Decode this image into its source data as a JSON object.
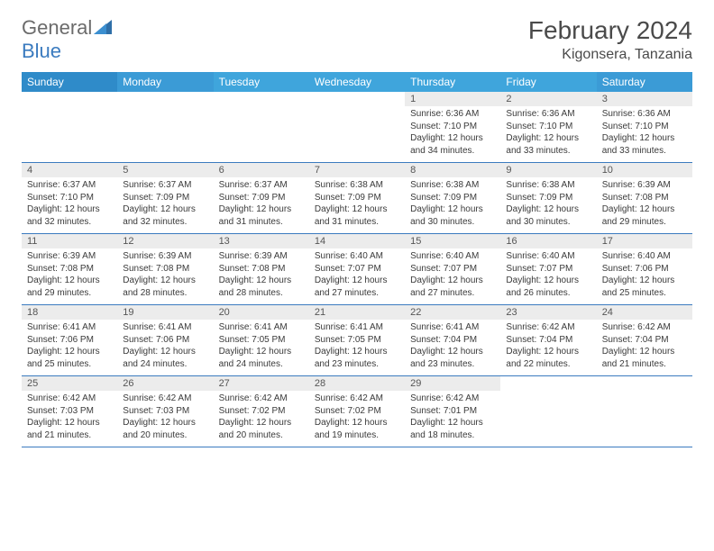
{
  "logo": {
    "text1": "General",
    "text2": "Blue"
  },
  "title": {
    "month": "February 2024",
    "location": "Kigonsera, Tanzania"
  },
  "colors": {
    "header_bg": "#3fa5dc",
    "header_bg_alt": "#2f8bc9",
    "row_divider": "#3b7bbf",
    "daynum_bg": "#ececec",
    "text": "#3a3a3a",
    "title_text": "#4a4a4a"
  },
  "day_names": [
    "Sunday",
    "Monday",
    "Tuesday",
    "Wednesday",
    "Thursday",
    "Friday",
    "Saturday"
  ],
  "weeks": [
    [
      {
        "n": "",
        "sr": "",
        "ss": "",
        "dl": ""
      },
      {
        "n": "",
        "sr": "",
        "ss": "",
        "dl": ""
      },
      {
        "n": "",
        "sr": "",
        "ss": "",
        "dl": ""
      },
      {
        "n": "",
        "sr": "",
        "ss": "",
        "dl": ""
      },
      {
        "n": "1",
        "sr": "Sunrise: 6:36 AM",
        "ss": "Sunset: 7:10 PM",
        "dl": "Daylight: 12 hours and 34 minutes."
      },
      {
        "n": "2",
        "sr": "Sunrise: 6:36 AM",
        "ss": "Sunset: 7:10 PM",
        "dl": "Daylight: 12 hours and 33 minutes."
      },
      {
        "n": "3",
        "sr": "Sunrise: 6:36 AM",
        "ss": "Sunset: 7:10 PM",
        "dl": "Daylight: 12 hours and 33 minutes."
      }
    ],
    [
      {
        "n": "4",
        "sr": "Sunrise: 6:37 AM",
        "ss": "Sunset: 7:10 PM",
        "dl": "Daylight: 12 hours and 32 minutes."
      },
      {
        "n": "5",
        "sr": "Sunrise: 6:37 AM",
        "ss": "Sunset: 7:09 PM",
        "dl": "Daylight: 12 hours and 32 minutes."
      },
      {
        "n": "6",
        "sr": "Sunrise: 6:37 AM",
        "ss": "Sunset: 7:09 PM",
        "dl": "Daylight: 12 hours and 31 minutes."
      },
      {
        "n": "7",
        "sr": "Sunrise: 6:38 AM",
        "ss": "Sunset: 7:09 PM",
        "dl": "Daylight: 12 hours and 31 minutes."
      },
      {
        "n": "8",
        "sr": "Sunrise: 6:38 AM",
        "ss": "Sunset: 7:09 PM",
        "dl": "Daylight: 12 hours and 30 minutes."
      },
      {
        "n": "9",
        "sr": "Sunrise: 6:38 AM",
        "ss": "Sunset: 7:09 PM",
        "dl": "Daylight: 12 hours and 30 minutes."
      },
      {
        "n": "10",
        "sr": "Sunrise: 6:39 AM",
        "ss": "Sunset: 7:08 PM",
        "dl": "Daylight: 12 hours and 29 minutes."
      }
    ],
    [
      {
        "n": "11",
        "sr": "Sunrise: 6:39 AM",
        "ss": "Sunset: 7:08 PM",
        "dl": "Daylight: 12 hours and 29 minutes."
      },
      {
        "n": "12",
        "sr": "Sunrise: 6:39 AM",
        "ss": "Sunset: 7:08 PM",
        "dl": "Daylight: 12 hours and 28 minutes."
      },
      {
        "n": "13",
        "sr": "Sunrise: 6:39 AM",
        "ss": "Sunset: 7:08 PM",
        "dl": "Daylight: 12 hours and 28 minutes."
      },
      {
        "n": "14",
        "sr": "Sunrise: 6:40 AM",
        "ss": "Sunset: 7:07 PM",
        "dl": "Daylight: 12 hours and 27 minutes."
      },
      {
        "n": "15",
        "sr": "Sunrise: 6:40 AM",
        "ss": "Sunset: 7:07 PM",
        "dl": "Daylight: 12 hours and 27 minutes."
      },
      {
        "n": "16",
        "sr": "Sunrise: 6:40 AM",
        "ss": "Sunset: 7:07 PM",
        "dl": "Daylight: 12 hours and 26 minutes."
      },
      {
        "n": "17",
        "sr": "Sunrise: 6:40 AM",
        "ss": "Sunset: 7:06 PM",
        "dl": "Daylight: 12 hours and 25 minutes."
      }
    ],
    [
      {
        "n": "18",
        "sr": "Sunrise: 6:41 AM",
        "ss": "Sunset: 7:06 PM",
        "dl": "Daylight: 12 hours and 25 minutes."
      },
      {
        "n": "19",
        "sr": "Sunrise: 6:41 AM",
        "ss": "Sunset: 7:06 PM",
        "dl": "Daylight: 12 hours and 24 minutes."
      },
      {
        "n": "20",
        "sr": "Sunrise: 6:41 AM",
        "ss": "Sunset: 7:05 PM",
        "dl": "Daylight: 12 hours and 24 minutes."
      },
      {
        "n": "21",
        "sr": "Sunrise: 6:41 AM",
        "ss": "Sunset: 7:05 PM",
        "dl": "Daylight: 12 hours and 23 minutes."
      },
      {
        "n": "22",
        "sr": "Sunrise: 6:41 AM",
        "ss": "Sunset: 7:04 PM",
        "dl": "Daylight: 12 hours and 23 minutes."
      },
      {
        "n": "23",
        "sr": "Sunrise: 6:42 AM",
        "ss": "Sunset: 7:04 PM",
        "dl": "Daylight: 12 hours and 22 minutes."
      },
      {
        "n": "24",
        "sr": "Sunrise: 6:42 AM",
        "ss": "Sunset: 7:04 PM",
        "dl": "Daylight: 12 hours and 21 minutes."
      }
    ],
    [
      {
        "n": "25",
        "sr": "Sunrise: 6:42 AM",
        "ss": "Sunset: 7:03 PM",
        "dl": "Daylight: 12 hours and 21 minutes."
      },
      {
        "n": "26",
        "sr": "Sunrise: 6:42 AM",
        "ss": "Sunset: 7:03 PM",
        "dl": "Daylight: 12 hours and 20 minutes."
      },
      {
        "n": "27",
        "sr": "Sunrise: 6:42 AM",
        "ss": "Sunset: 7:02 PM",
        "dl": "Daylight: 12 hours and 20 minutes."
      },
      {
        "n": "28",
        "sr": "Sunrise: 6:42 AM",
        "ss": "Sunset: 7:02 PM",
        "dl": "Daylight: 12 hours and 19 minutes."
      },
      {
        "n": "29",
        "sr": "Sunrise: 6:42 AM",
        "ss": "Sunset: 7:01 PM",
        "dl": "Daylight: 12 hours and 18 minutes."
      },
      {
        "n": "",
        "sr": "",
        "ss": "",
        "dl": ""
      },
      {
        "n": "",
        "sr": "",
        "ss": "",
        "dl": ""
      }
    ]
  ]
}
